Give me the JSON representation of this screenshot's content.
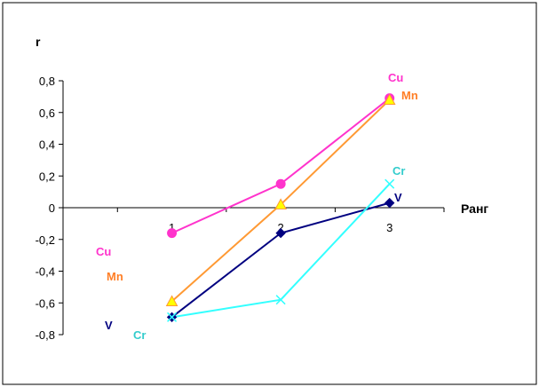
{
  "chart_data": {
    "type": "line",
    "ylabel": "r",
    "xlabel": "Ранг",
    "x": [
      1,
      2,
      3
    ],
    "x_tick_labels": [
      "1",
      "2",
      "3"
    ],
    "xlim": [
      0,
      3.5
    ],
    "ylim": [
      -0.8,
      0.8
    ],
    "y_ticks": [
      -0.8,
      -0.6,
      -0.4,
      -0.2,
      0,
      0.2,
      0.4,
      0.6,
      0.8
    ],
    "y_tick_labels": [
      "-0,8",
      "-0,6",
      "-0,4",
      "-0,2",
      "0",
      "0,2",
      "0,4",
      "0,6",
      "0,8"
    ],
    "grid": false,
    "series": [
      {
        "name": "Cu",
        "values": [
          -0.16,
          0.15,
          0.69
        ],
        "color": "#ff33cc",
        "marker": "circle",
        "start_label": "Cu",
        "end_label": "Cu"
      },
      {
        "name": "Mn",
        "values": [
          -0.59,
          0.02,
          0.68
        ],
        "color": "#ff9933",
        "marker_fill": "#ffff00",
        "marker": "triangle",
        "start_label": "Mn",
        "end_label": "Mn"
      },
      {
        "name": "V",
        "values": [
          -0.69,
          -0.16,
          0.03
        ],
        "color": "#000080",
        "marker": "diamond",
        "start_label": "V",
        "end_label": "V"
      },
      {
        "name": "Cr",
        "values": [
          -0.69,
          -0.58,
          0.15
        ],
        "color": "#33ffff",
        "marker": "x",
        "start_label": "Cr",
        "end_label": "Cr"
      }
    ],
    "label_colors": {
      "Cu": "#ff33cc",
      "Mn": "#ff7f27",
      "V": "#000080",
      "Cr": "#33cccc"
    }
  }
}
